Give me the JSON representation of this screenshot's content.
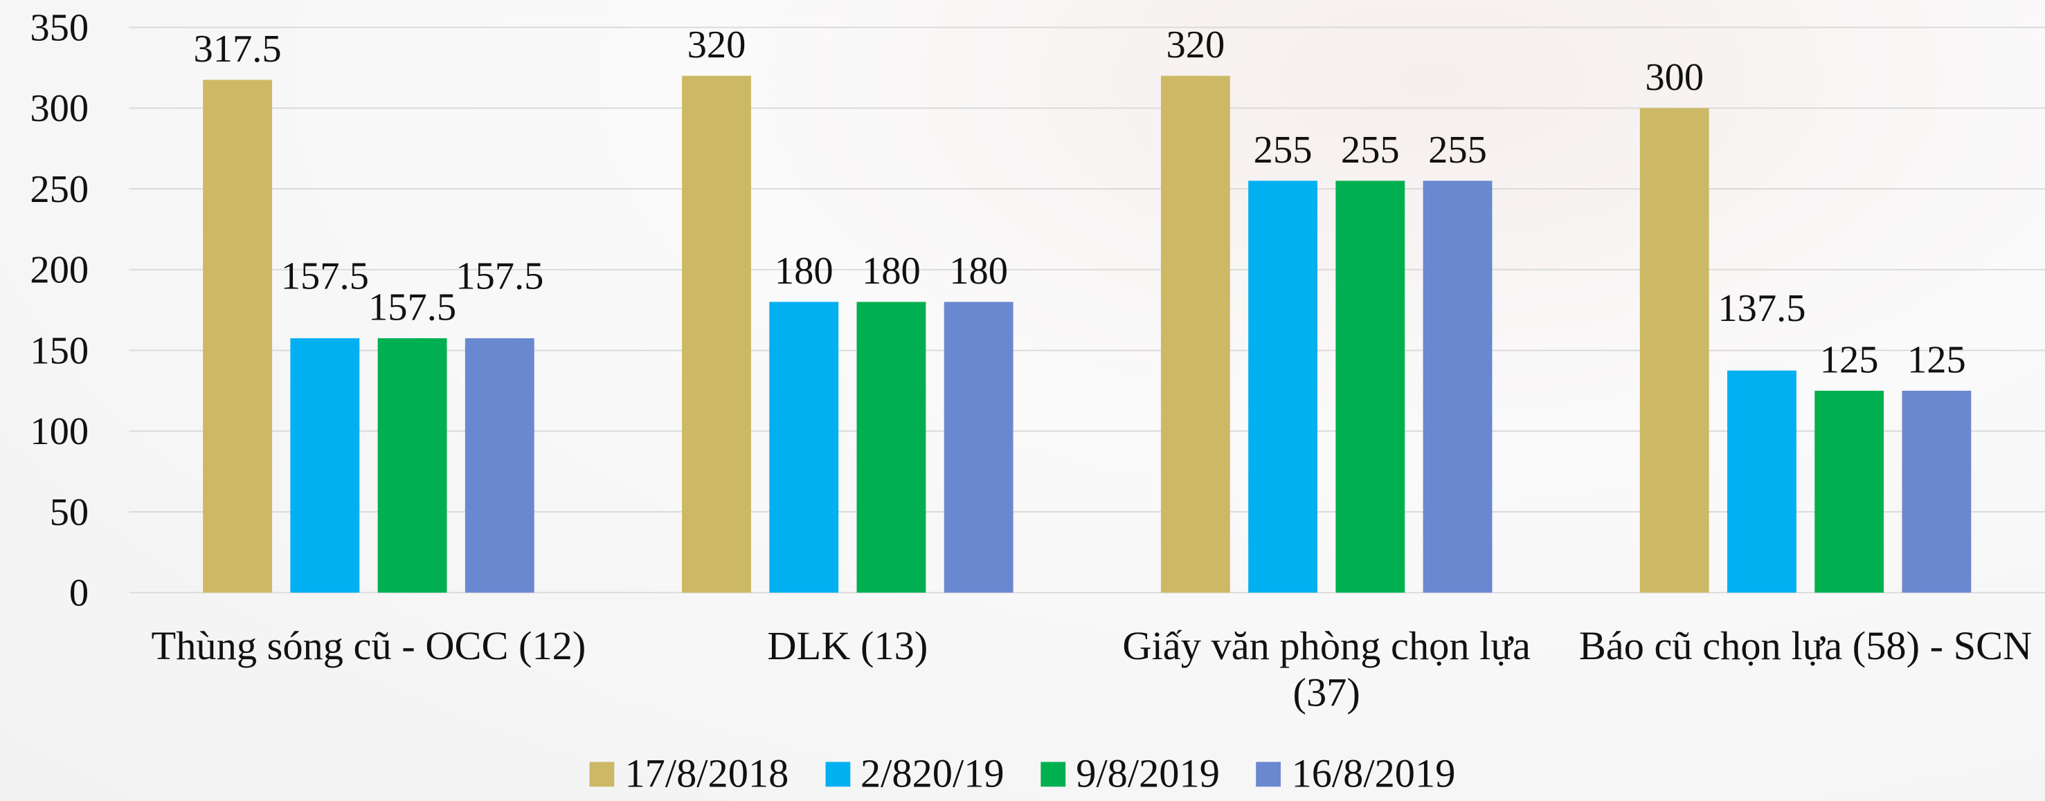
{
  "chart_data": {
    "type": "bar",
    "categories": [
      "Thùng sóng cũ - OCC (12)",
      "DLK (13)",
      "Giấy văn phòng chọn lựa (37)",
      "Báo cũ chọn lựa (58) - SCN"
    ],
    "series": [
      {
        "name": "17/8/2018",
        "color": "#cdb866",
        "values": [
          317.5,
          320,
          320,
          300
        ]
      },
      {
        "name": "2/820/19",
        "color": "#00b0f0",
        "values": [
          157.5,
          180,
          255,
          137.5
        ]
      },
      {
        "name": "9/8/2019",
        "color": "#00b050",
        "values": [
          157.5,
          180,
          255,
          125
        ]
      },
      {
        "name": "16/8/2019",
        "color": "#6a88d0",
        "values": [
          157.5,
          180,
          255,
          125
        ]
      }
    ],
    "ylim": [
      0,
      350
    ],
    "yticks": [
      0,
      50,
      100,
      150,
      200,
      250,
      300,
      350
    ],
    "grid": true,
    "legend": "bottom"
  }
}
